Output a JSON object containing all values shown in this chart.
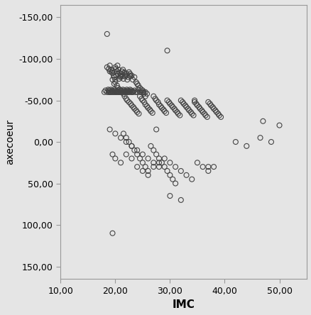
{
  "xlabel": "IMC",
  "ylabel": "axecoeur",
  "xlim": [
    10,
    55
  ],
  "ylim": [
    -165,
    165
  ],
  "xticks": [
    10.0,
    20.0,
    30.0,
    40.0,
    50.0
  ],
  "yticks": [
    -150.0,
    -100.0,
    -50.0,
    0.0,
    50.0,
    100.0,
    150.0
  ],
  "xtick_labels": [
    "10,00",
    "20,00",
    "30,00",
    "40,00",
    "50,00"
  ],
  "ytick_labels": [
    "150,00",
    "100,00",
    "50,00",
    "0,00",
    "-50,00",
    "-100,00",
    "-150,00"
  ],
  "background_color": "#e5e5e5",
  "marker_color": "none",
  "marker_edge_color": "#444444",
  "marker_size": 5,
  "x_data": [
    18.5,
    18.8,
    19.0,
    19.0,
    19.2,
    19.3,
    19.5,
    19.5,
    19.7,
    19.8,
    20.0,
    20.0,
    20.1,
    20.2,
    20.3,
    20.4,
    20.5,
    20.6,
    20.7,
    20.8,
    20.9,
    21.0,
    21.0,
    21.1,
    21.2,
    21.3,
    21.4,
    21.5,
    21.6,
    21.7,
    21.8,
    22.0,
    22.1,
    22.2,
    22.4,
    22.5,
    22.6,
    22.7,
    22.8,
    23.0,
    23.2,
    23.5,
    23.8,
    24.0,
    24.2,
    24.5,
    24.8,
    25.0,
    25.2,
    25.5,
    18.0,
    18.2,
    18.5,
    18.7,
    18.8,
    18.9,
    19.0,
    19.1,
    19.2,
    19.3,
    19.4,
    19.5,
    19.6,
    19.7,
    19.8,
    19.9,
    20.0,
    20.1,
    20.2,
    20.3,
    20.4,
    20.5,
    20.6,
    20.7,
    20.8,
    20.9,
    21.0,
    21.1,
    21.2,
    21.3,
    21.4,
    21.5,
    21.6,
    21.7,
    21.8,
    21.9,
    22.0,
    22.1,
    22.2,
    22.3,
    22.4,
    22.5,
    22.6,
    22.7,
    22.8,
    22.9,
    23.0,
    23.1,
    23.2,
    23.3,
    23.5,
    23.7,
    24.0,
    24.2,
    24.5,
    24.7,
    25.0,
    25.2,
    25.5,
    25.8,
    19.5,
    19.8,
    20.0,
    20.3,
    20.5,
    20.7,
    21.0,
    21.2,
    21.5,
    21.7,
    22.0,
    22.2,
    22.5,
    22.8,
    23.0,
    23.3,
    23.5,
    23.8,
    24.0,
    24.3,
    24.5,
    24.8,
    25.0,
    25.3,
    25.5,
    25.8,
    26.0,
    26.3,
    26.5,
    26.8,
    27.0,
    27.3,
    27.5,
    27.8,
    28.0,
    28.3,
    28.5,
    28.8,
    29.0,
    29.3,
    29.5,
    29.8,
    30.0,
    30.3,
    30.5,
    30.8,
    31.0,
    31.3,
    31.5,
    31.8,
    32.0,
    32.3,
    32.5,
    32.8,
    33.0,
    33.3,
    33.5,
    33.8,
    34.0,
    34.3,
    34.5,
    34.8,
    35.0,
    35.3,
    35.5,
    35.8,
    36.0,
    36.3,
    36.5,
    36.8,
    37.0,
    37.3,
    37.5,
    37.8,
    38.0,
    38.3,
    38.5,
    38.8,
    39.0,
    39.3,
    21.5,
    22.0,
    22.5,
    23.0,
    23.5,
    24.0,
    24.5,
    25.0,
    25.5,
    26.0,
    26.5,
    27.0,
    27.5,
    28.0,
    28.5,
    29.0,
    29.5,
    30.0,
    30.5,
    31.0,
    19.0,
    20.0,
    21.0,
    22.0,
    23.0,
    24.0,
    25.0,
    26.0,
    27.0,
    28.0,
    19.5,
    20.0,
    21.0,
    22.0,
    23.0,
    24.0,
    25.0,
    26.0,
    27.0,
    28.0,
    29.0,
    30.0,
    31.0,
    32.0,
    33.0,
    34.0,
    35.0,
    36.0,
    37.0,
    38.0,
    47.0,
    48.5,
    50.0,
    46.5,
    44.0,
    42.0,
    19.5,
    18.5,
    27.5,
    30.0,
    34.5,
    37.0,
    29.5,
    32.0
  ],
  "y_data": [
    90,
    88,
    92,
    85,
    87,
    84,
    86,
    83,
    80,
    78,
    90,
    75,
    88,
    80,
    85,
    92,
    82,
    87,
    76,
    83,
    79,
    80,
    78,
    82,
    85,
    79,
    87,
    76,
    83,
    84,
    79,
    80,
    82,
    75,
    78,
    84,
    80,
    82,
    79,
    80,
    75,
    78,
    72,
    70,
    68,
    65,
    63,
    60,
    58,
    55,
    60,
    62,
    60,
    63,
    60,
    62,
    60,
    60,
    63,
    60,
    62,
    60,
    61,
    60,
    63,
    60,
    62,
    60,
    60,
    61,
    60,
    62,
    60,
    60,
    63,
    60,
    60,
    62,
    60,
    60,
    63,
    60,
    62,
    60,
    60,
    61,
    60,
    63,
    60,
    62,
    60,
    60,
    61,
    63,
    60,
    62,
    60,
    60,
    61,
    60,
    62,
    60,
    60,
    63,
    60,
    60,
    62,
    60,
    60,
    58,
    75,
    70,
    72,
    68,
    65,
    63,
    62,
    60,
    58,
    55,
    52,
    50,
    48,
    46,
    44,
    42,
    40,
    38,
    36,
    34,
    55,
    52,
    50,
    48,
    45,
    43,
    41,
    39,
    37,
    35,
    55,
    52,
    50,
    48,
    45,
    43,
    41,
    39,
    37,
    35,
    50,
    48,
    46,
    44,
    42,
    40,
    38,
    36,
    34,
    32,
    50,
    48,
    46,
    44,
    42,
    40,
    38,
    36,
    34,
    32,
    48,
    46,
    44,
    42,
    40,
    38,
    36,
    34,
    32,
    30,
    48,
    46,
    44,
    42,
    40,
    38,
    36,
    34,
    32,
    30,
    10,
    5,
    0,
    -5,
    -10,
    -15,
    -20,
    -25,
    -30,
    -35,
    -5,
    -10,
    -15,
    -20,
    -25,
    -30,
    -35,
    -40,
    -45,
    -50,
    15,
    10,
    5,
    0,
    -5,
    -10,
    -15,
    -20,
    -25,
    -30,
    -15,
    -20,
    -25,
    -15,
    -20,
    -30,
    -35,
    -40,
    -30,
    -25,
    -20,
    -25,
    -30,
    -35,
    -40,
    -45,
    -25,
    -30,
    -35,
    -30,
    25,
    0,
    20,
    5,
    -5,
    0,
    -110,
    130,
    15,
    -65,
    50,
    -30,
    110,
    -70
  ]
}
